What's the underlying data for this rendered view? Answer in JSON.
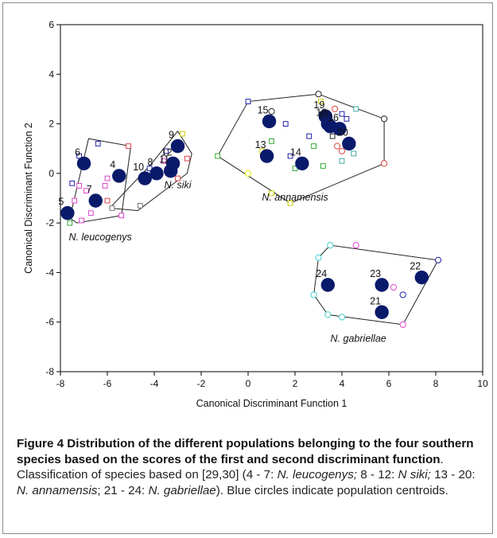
{
  "chart_data": {
    "type": "scatter",
    "xlabel": "Canonical Discriminant Function 1",
    "ylabel": "Canonical Discriminant Function 2",
    "xlim": [
      -8,
      10
    ],
    "ylim": [
      -8,
      6
    ],
    "xticks": [
      -8,
      -6,
      -4,
      -2,
      0,
      2,
      4,
      6,
      8,
      10
    ],
    "yticks": [
      -8,
      -6,
      -4,
      -2,
      0,
      2,
      4,
      6
    ],
    "grid": false,
    "colors": {
      "centroid": "#0a1a6b",
      "hull": "#222222",
      "axis": "#000000"
    },
    "groups": [
      {
        "label": "N. leucogenys",
        "label_pos": [
          -6.3,
          -2.7
        ],
        "hull": [
          [
            -7.6,
            -1.8
          ],
          [
            -6.8,
            1.4
          ],
          [
            -5.0,
            1.1
          ],
          [
            -5.4,
            -1.7
          ],
          [
            -7.3,
            -2.0
          ]
        ],
        "centroids": [
          {
            "id": "4",
            "x": -5.5,
            "y": -0.1
          },
          {
            "id": "5",
            "x": -7.7,
            "y": -1.6
          },
          {
            "id": "6",
            "x": -7.0,
            "y": 0.4
          },
          {
            "id": "7",
            "x": -6.5,
            "y": -1.1
          }
        ],
        "members": [
          {
            "x": -5.1,
            "y": 1.1,
            "s": "square",
            "c": "#d44"
          },
          {
            "x": -6.4,
            "y": 1.2,
            "s": "square",
            "c": "#22a"
          },
          {
            "x": -7.2,
            "y": 0.7,
            "s": "square",
            "c": "#22a"
          },
          {
            "x": -5.6,
            "y": -0.2,
            "s": "square",
            "c": "#d44"
          },
          {
            "x": -6.0,
            "y": -0.2,
            "s": "square",
            "c": "#d4c"
          },
          {
            "x": -6.1,
            "y": -0.5,
            "s": "square",
            "c": "#d4c"
          },
          {
            "x": -7.2,
            "y": -0.5,
            "s": "square",
            "c": "#d4c"
          },
          {
            "x": -6.9,
            "y": -0.7,
            "s": "square",
            "c": "#d4c"
          },
          {
            "x": -7.5,
            "y": -0.4,
            "s": "square",
            "c": "#22a"
          },
          {
            "x": -7.4,
            "y": -1.1,
            "s": "square",
            "c": "#d4c"
          },
          {
            "x": -6.0,
            "y": -1.1,
            "s": "square",
            "c": "#d44"
          },
          {
            "x": -6.7,
            "y": -1.6,
            "s": "square",
            "c": "#d4c"
          },
          {
            "x": -7.1,
            "y": -1.9,
            "s": "square",
            "c": "#d4c"
          },
          {
            "x": -5.4,
            "y": -1.7,
            "s": "square",
            "c": "#d4c"
          },
          {
            "x": -7.6,
            "y": -2.0,
            "s": "square",
            "c": "#3a3"
          }
        ]
      },
      {
        "label": "N. siki",
        "label_pos": [
          -3.0,
          -0.6
        ],
        "hull": [
          [
            -5.9,
            -1.4
          ],
          [
            -4.2,
            0.3
          ],
          [
            -3.0,
            1.7
          ],
          [
            -2.4,
            0.8
          ],
          [
            -2.6,
            0.0
          ],
          [
            -4.7,
            -1.5
          ]
        ],
        "centroids": [
          {
            "id": "8",
            "x": -3.9,
            "y": 0.0
          },
          {
            "id": "9",
            "x": -3.0,
            "y": 1.1
          },
          {
            "id": "10",
            "x": -4.4,
            "y": -0.2
          },
          {
            "id": "11",
            "x": -3.3,
            "y": 0.1
          },
          {
            "id": "12",
            "x": -3.2,
            "y": 0.4
          }
        ],
        "members": [
          {
            "x": -2.9,
            "y": 1.1,
            "s": "square",
            "c": "#222"
          },
          {
            "x": -3.5,
            "y": 0.9,
            "s": "square",
            "c": "#22a"
          },
          {
            "x": -2.6,
            "y": 0.6,
            "s": "square",
            "c": "#d44"
          },
          {
            "x": -3.6,
            "y": 0.5,
            "s": "square",
            "c": "#d4c"
          },
          {
            "x": -4.2,
            "y": 0.2,
            "s": "square",
            "c": "#22a"
          },
          {
            "x": -3.0,
            "y": -0.2,
            "s": "square",
            "c": "#d44"
          },
          {
            "x": -4.6,
            "y": -1.3,
            "s": "square",
            "c": "#777"
          },
          {
            "x": -5.8,
            "y": -1.4,
            "s": "square",
            "c": "#777"
          },
          {
            "x": -2.8,
            "y": 1.6,
            "s": "square",
            "c": "#cc0"
          }
        ]
      },
      {
        "label": "N. annamensis",
        "label_pos": [
          2.0,
          -1.1
        ],
        "hull": [
          [
            -1.3,
            0.7
          ],
          [
            0.0,
            2.9
          ],
          [
            3.0,
            3.2
          ],
          [
            5.8,
            2.2
          ],
          [
            5.8,
            0.4
          ],
          [
            1.8,
            -1.2
          ]
        ],
        "centroids": [
          {
            "id": "13",
            "x": 0.8,
            "y": 0.7
          },
          {
            "id": "14",
            "x": 2.3,
            "y": 0.4
          },
          {
            "id": "15",
            "x": 0.9,
            "y": 2.1
          },
          {
            "id": "16",
            "x": 3.9,
            "y": 1.8
          },
          {
            "id": "17",
            "x": 3.5,
            "y": 1.9
          },
          {
            "id": "18",
            "x": 3.4,
            "y": 2.0
          },
          {
            "id": "19",
            "x": 3.3,
            "y": 2.3
          },
          {
            "id": "20",
            "x": 4.3,
            "y": 1.2
          }
        ],
        "members": [
          {
            "x": 0.0,
            "y": 2.9,
            "s": "square",
            "c": "#22a"
          },
          {
            "x": 1.0,
            "y": 2.5,
            "s": "circle",
            "c": "#222"
          },
          {
            "x": 1.6,
            "y": 2.0,
            "s": "square",
            "c": "#22a"
          },
          {
            "x": 2.6,
            "y": 1.5,
            "s": "square",
            "c": "#22a"
          },
          {
            "x": 2.8,
            "y": 1.1,
            "s": "square",
            "c": "#3a3"
          },
          {
            "x": 3.0,
            "y": 3.2,
            "s": "circle",
            "c": "#222"
          },
          {
            "x": 3.1,
            "y": 2.9,
            "s": "square",
            "c": "#cc0"
          },
          {
            "x": 3.7,
            "y": 2.6,
            "s": "circle",
            "c": "#d44"
          },
          {
            "x": 4.0,
            "y": 2.4,
            "s": "square",
            "c": "#22a"
          },
          {
            "x": 4.2,
            "y": 2.2,
            "s": "square",
            "c": "#22a"
          },
          {
            "x": 4.6,
            "y": 2.6,
            "s": "square",
            "c": "#4aa"
          },
          {
            "x": 5.8,
            "y": 2.2,
            "s": "circle",
            "c": "#222"
          },
          {
            "x": 3.8,
            "y": 1.1,
            "s": "circle",
            "c": "#d44"
          },
          {
            "x": 4.0,
            "y": 0.9,
            "s": "circle",
            "c": "#d44"
          },
          {
            "x": 4.5,
            "y": 0.8,
            "s": "square",
            "c": "#4aa"
          },
          {
            "x": 4.0,
            "y": 0.5,
            "s": "square",
            "c": "#4aa"
          },
          {
            "x": 3.2,
            "y": 0.3,
            "s": "square",
            "c": "#3a3"
          },
          {
            "x": 5.8,
            "y": 0.4,
            "s": "circle",
            "c": "#d44"
          },
          {
            "x": 1.0,
            "y": 1.3,
            "s": "square",
            "c": "#3a3"
          },
          {
            "x": 0.6,
            "y": 0.9,
            "s": "square",
            "c": "#cc0"
          },
          {
            "x": 1.8,
            "y": 0.7,
            "s": "square",
            "c": "#22a"
          },
          {
            "x": 2.0,
            "y": 0.2,
            "s": "square",
            "c": "#3a3"
          },
          {
            "x": 3.6,
            "y": 1.5,
            "s": "square",
            "c": "#222"
          },
          {
            "x": 0.0,
            "y": 0.0,
            "s": "circle",
            "c": "#ee0"
          },
          {
            "x": 1.0,
            "y": -0.8,
            "s": "square",
            "c": "#cc0"
          },
          {
            "x": -1.3,
            "y": 0.7,
            "s": "square",
            "c": "#3a3"
          },
          {
            "x": 1.8,
            "y": -1.2,
            "s": "square",
            "c": "#cc0"
          }
        ]
      },
      {
        "label": "N. gabriellae",
        "label_pos": [
          4.7,
          -6.8
        ],
        "hull": [
          [
            3.0,
            -3.4
          ],
          [
            3.5,
            -2.9
          ],
          [
            8.1,
            -3.5
          ],
          [
            6.6,
            -6.1
          ],
          [
            3.4,
            -5.7
          ],
          [
            2.8,
            -4.9
          ]
        ],
        "centroids": [
          {
            "id": "21",
            "x": 5.7,
            "y": -5.6
          },
          {
            "id": "22",
            "x": 7.4,
            "y": -4.2
          },
          {
            "id": "23",
            "x": 5.7,
            "y": -4.5
          },
          {
            "id": "24",
            "x": 3.4,
            "y": -4.5
          }
        ],
        "members": [
          {
            "x": 3.5,
            "y": -2.9,
            "s": "circle",
            "c": "#4cc"
          },
          {
            "x": 4.6,
            "y": -2.9,
            "s": "circle",
            "c": "#d4c"
          },
          {
            "x": 3.0,
            "y": -3.4,
            "s": "circle",
            "c": "#4cc"
          },
          {
            "x": 8.1,
            "y": -3.5,
            "s": "circle",
            "c": "#22a"
          },
          {
            "x": 6.2,
            "y": -4.6,
            "s": "circle",
            "c": "#d4c"
          },
          {
            "x": 6.6,
            "y": -4.9,
            "s": "circle",
            "c": "#22a"
          },
          {
            "x": 2.8,
            "y": -4.9,
            "s": "circle",
            "c": "#4cc"
          },
          {
            "x": 3.4,
            "y": -5.7,
            "s": "circle",
            "c": "#4cc"
          },
          {
            "x": 4.0,
            "y": -5.8,
            "s": "circle",
            "c": "#4cc"
          },
          {
            "x": 5.7,
            "y": -5.6,
            "s": "circle",
            "c": "#4cc"
          },
          {
            "x": 6.6,
            "y": -6.1,
            "s": "circle",
            "c": "#d4c"
          }
        ]
      }
    ]
  },
  "caption": {
    "title": "Figure 4 Distribution of the different populations belonging to the four southern species based on the scores of the first and second discriminant function",
    "text_1": ". Classification of species based on [29,30] (4 - 7: ",
    "sp1": "N. leucogenys;",
    "text_2": " 8 - 12: ",
    "sp2": "N siki;",
    "text_3": " 13 - 20: ",
    "sp3": "N. annamensis",
    "text_4": "; 21 - 24: ",
    "sp4": "N. gabriellae",
    "text_5": "). Blue circles indicate population centroids."
  }
}
